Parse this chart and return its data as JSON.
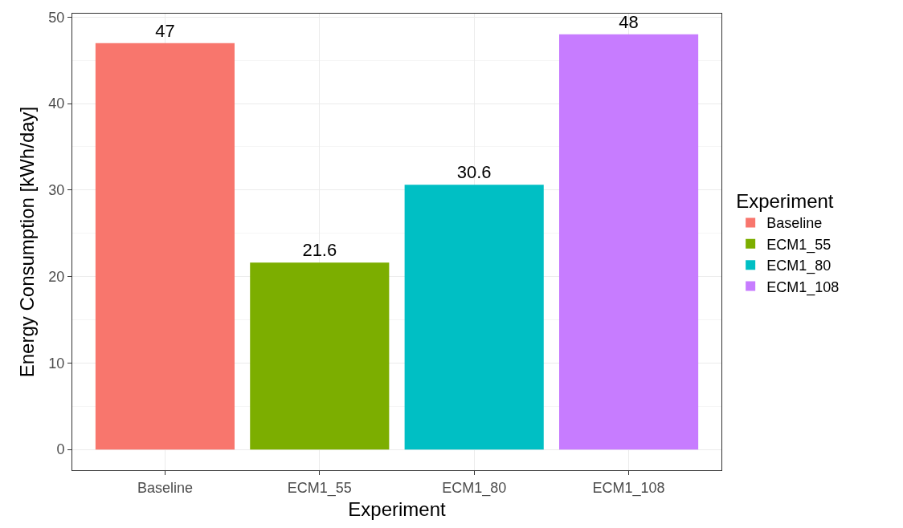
{
  "chart_data": {
    "type": "bar",
    "xlabel": "Experiment",
    "ylabel": "Energy Consumption [kWh/day]",
    "legend_title": "Experiment",
    "categories": [
      "Baseline",
      "ECM1_55",
      "ECM1_80",
      "ECM1_108"
    ],
    "series": [
      {
        "name": "Baseline",
        "color": "#f8766d",
        "values": [
          47,
          null,
          null,
          null
        ]
      },
      {
        "name": "ECM1_55",
        "color": "#7cae00",
        "values": [
          null,
          21.6,
          null,
          null
        ]
      },
      {
        "name": "ECM1_80",
        "color": "#00bfc4",
        "values": [
          null,
          null,
          30.6,
          null
        ]
      },
      {
        "name": "ECM1_108",
        "color": "#c77cff",
        "values": [
          null,
          null,
          null,
          48
        ]
      }
    ],
    "ylim": [
      -2.4,
      50.4
    ],
    "yticks": [
      0,
      10,
      20,
      30,
      40,
      50
    ],
    "grid": true,
    "legend": "right",
    "data_labels": true
  }
}
